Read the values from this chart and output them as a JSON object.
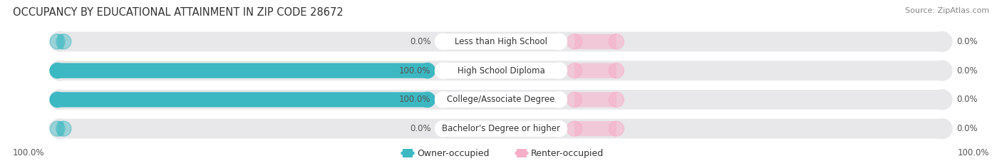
{
  "title": "OCCUPANCY BY EDUCATIONAL ATTAINMENT IN ZIP CODE 28672",
  "source": "Source: ZipAtlas.com",
  "categories": [
    "Less than High School",
    "High School Diploma",
    "College/Associate Degree",
    "Bachelor's Degree or higher"
  ],
  "owner_values": [
    0.0,
    100.0,
    100.0,
    0.0
  ],
  "renter_values": [
    0.0,
    0.0,
    0.0,
    0.0
  ],
  "owner_color": "#3cb8c2",
  "renter_color": "#f7aec8",
  "bg_bar_color": "#e8e8ea",
  "label_bg_color": "#ffffff",
  "title_fontsize": 10.5,
  "source_fontsize": 8,
  "bar_label_fontsize": 8.5,
  "pct_label_fontsize": 8.5,
  "legend_fontsize": 9,
  "left_pct_labels": [
    "0.0%",
    "100.0%",
    "100.0%",
    "0.0%"
  ],
  "right_pct_labels": [
    "0.0%",
    "0.0%",
    "0.0%",
    "0.0%"
  ],
  "bottom_left_label": "100.0%",
  "bottom_right_label": "100.0%"
}
